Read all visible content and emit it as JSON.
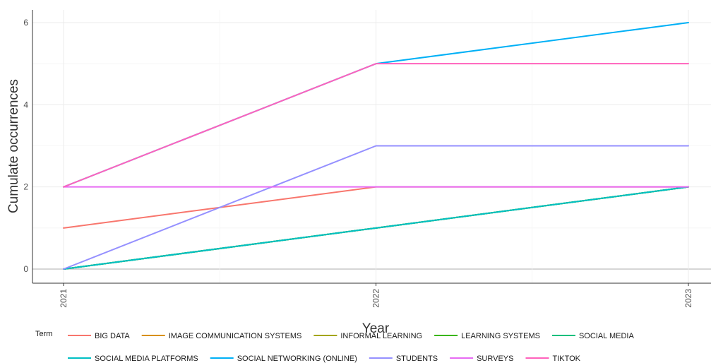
{
  "chart_data": {
    "type": "line",
    "xlabel": "Year",
    "ylabel": "Cumulate occurrences",
    "x": [
      "2021",
      "2022",
      "2023"
    ],
    "xlim": [
      2021,
      2023
    ],
    "ylim": [
      0,
      6
    ],
    "yticks": [
      0,
      2,
      4,
      6
    ],
    "grid": true,
    "legend_title": "Term",
    "legend_position": "bottom",
    "series": [
      {
        "name": "BIG DATA",
        "color": "#F8766D",
        "values": [
          1,
          2,
          2
        ]
      },
      {
        "name": "IMAGE COMMUNICATION SYSTEMS",
        "color": "#D89000",
        "values": [
          0,
          1,
          2
        ]
      },
      {
        "name": "INFORMAL LEARNING",
        "color": "#A3A500",
        "values": [
          0,
          1,
          2
        ]
      },
      {
        "name": "LEARNING SYSTEMS",
        "color": "#39B600",
        "values": [
          0,
          1,
          2
        ]
      },
      {
        "name": "SOCIAL MEDIA",
        "color": "#00BF7D",
        "values": [
          0,
          1,
          2
        ]
      },
      {
        "name": "SOCIAL MEDIA PLATFORMS",
        "color": "#00BFC4",
        "values": [
          0,
          1,
          2
        ]
      },
      {
        "name": "SOCIAL NETWORKING (ONLINE)",
        "color": "#00B0F6",
        "values": [
          2,
          5,
          6
        ]
      },
      {
        "name": "STUDENTS",
        "color": "#9590FF",
        "values": [
          0,
          3,
          3
        ]
      },
      {
        "name": "SURVEYS",
        "color": "#E76BF3",
        "values": [
          2,
          2,
          2
        ]
      },
      {
        "name": "TIKTOK",
        "color": "#FF62BC",
        "values": [
          2,
          5,
          5
        ]
      }
    ]
  }
}
